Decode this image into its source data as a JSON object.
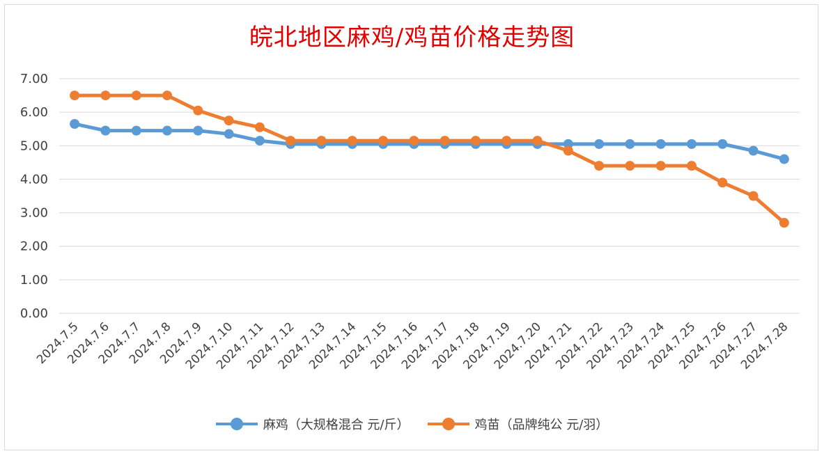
{
  "chart_data": {
    "type": "line",
    "title": "皖北地区麻鸡/鸡苗价格走势图",
    "categories": [
      "2024.7.5",
      "2024.7.6",
      "2024.7.7",
      "2024.7.8",
      "2024.7.9",
      "2024.7.10",
      "2024.7.11",
      "2024.7.12",
      "2024.7.13",
      "2024.7.14",
      "2024.7.15",
      "2024.7.16",
      "2024.7.17",
      "2024.7.18",
      "2024.7.19",
      "2024.7.20",
      "2024.7.21",
      "2024.7.22",
      "2024.7.23",
      "2024.7.24",
      "2024.7.25",
      "2024.7.26",
      "2024.7.27",
      "2024.7.28"
    ],
    "series": [
      {
        "name": "麻鸡（大规格混合 元/斤）",
        "color": "#5b9bd5",
        "values": [
          5.65,
          5.45,
          5.45,
          5.45,
          5.45,
          5.35,
          5.15,
          5.05,
          5.05,
          5.05,
          5.05,
          5.05,
          5.05,
          5.05,
          5.05,
          5.05,
          5.05,
          5.05,
          5.05,
          5.05,
          5.05,
          5.05,
          4.85,
          4.6
        ]
      },
      {
        "name": "鸡苗（品牌纯公 元/羽）",
        "color": "#ed7d31",
        "values": [
          6.5,
          6.5,
          6.5,
          6.5,
          6.05,
          5.75,
          5.55,
          5.15,
          5.15,
          5.15,
          5.15,
          5.15,
          5.15,
          5.15,
          5.15,
          5.15,
          4.85,
          4.4,
          4.4,
          4.4,
          4.4,
          3.9,
          3.5,
          2.7
        ]
      }
    ],
    "ylim": [
      0,
      7
    ],
    "yticks": [
      "0.00",
      "1.00",
      "2.00",
      "3.00",
      "4.00",
      "5.00",
      "6.00",
      "7.00"
    ],
    "grid": true,
    "legend": "bottom"
  }
}
